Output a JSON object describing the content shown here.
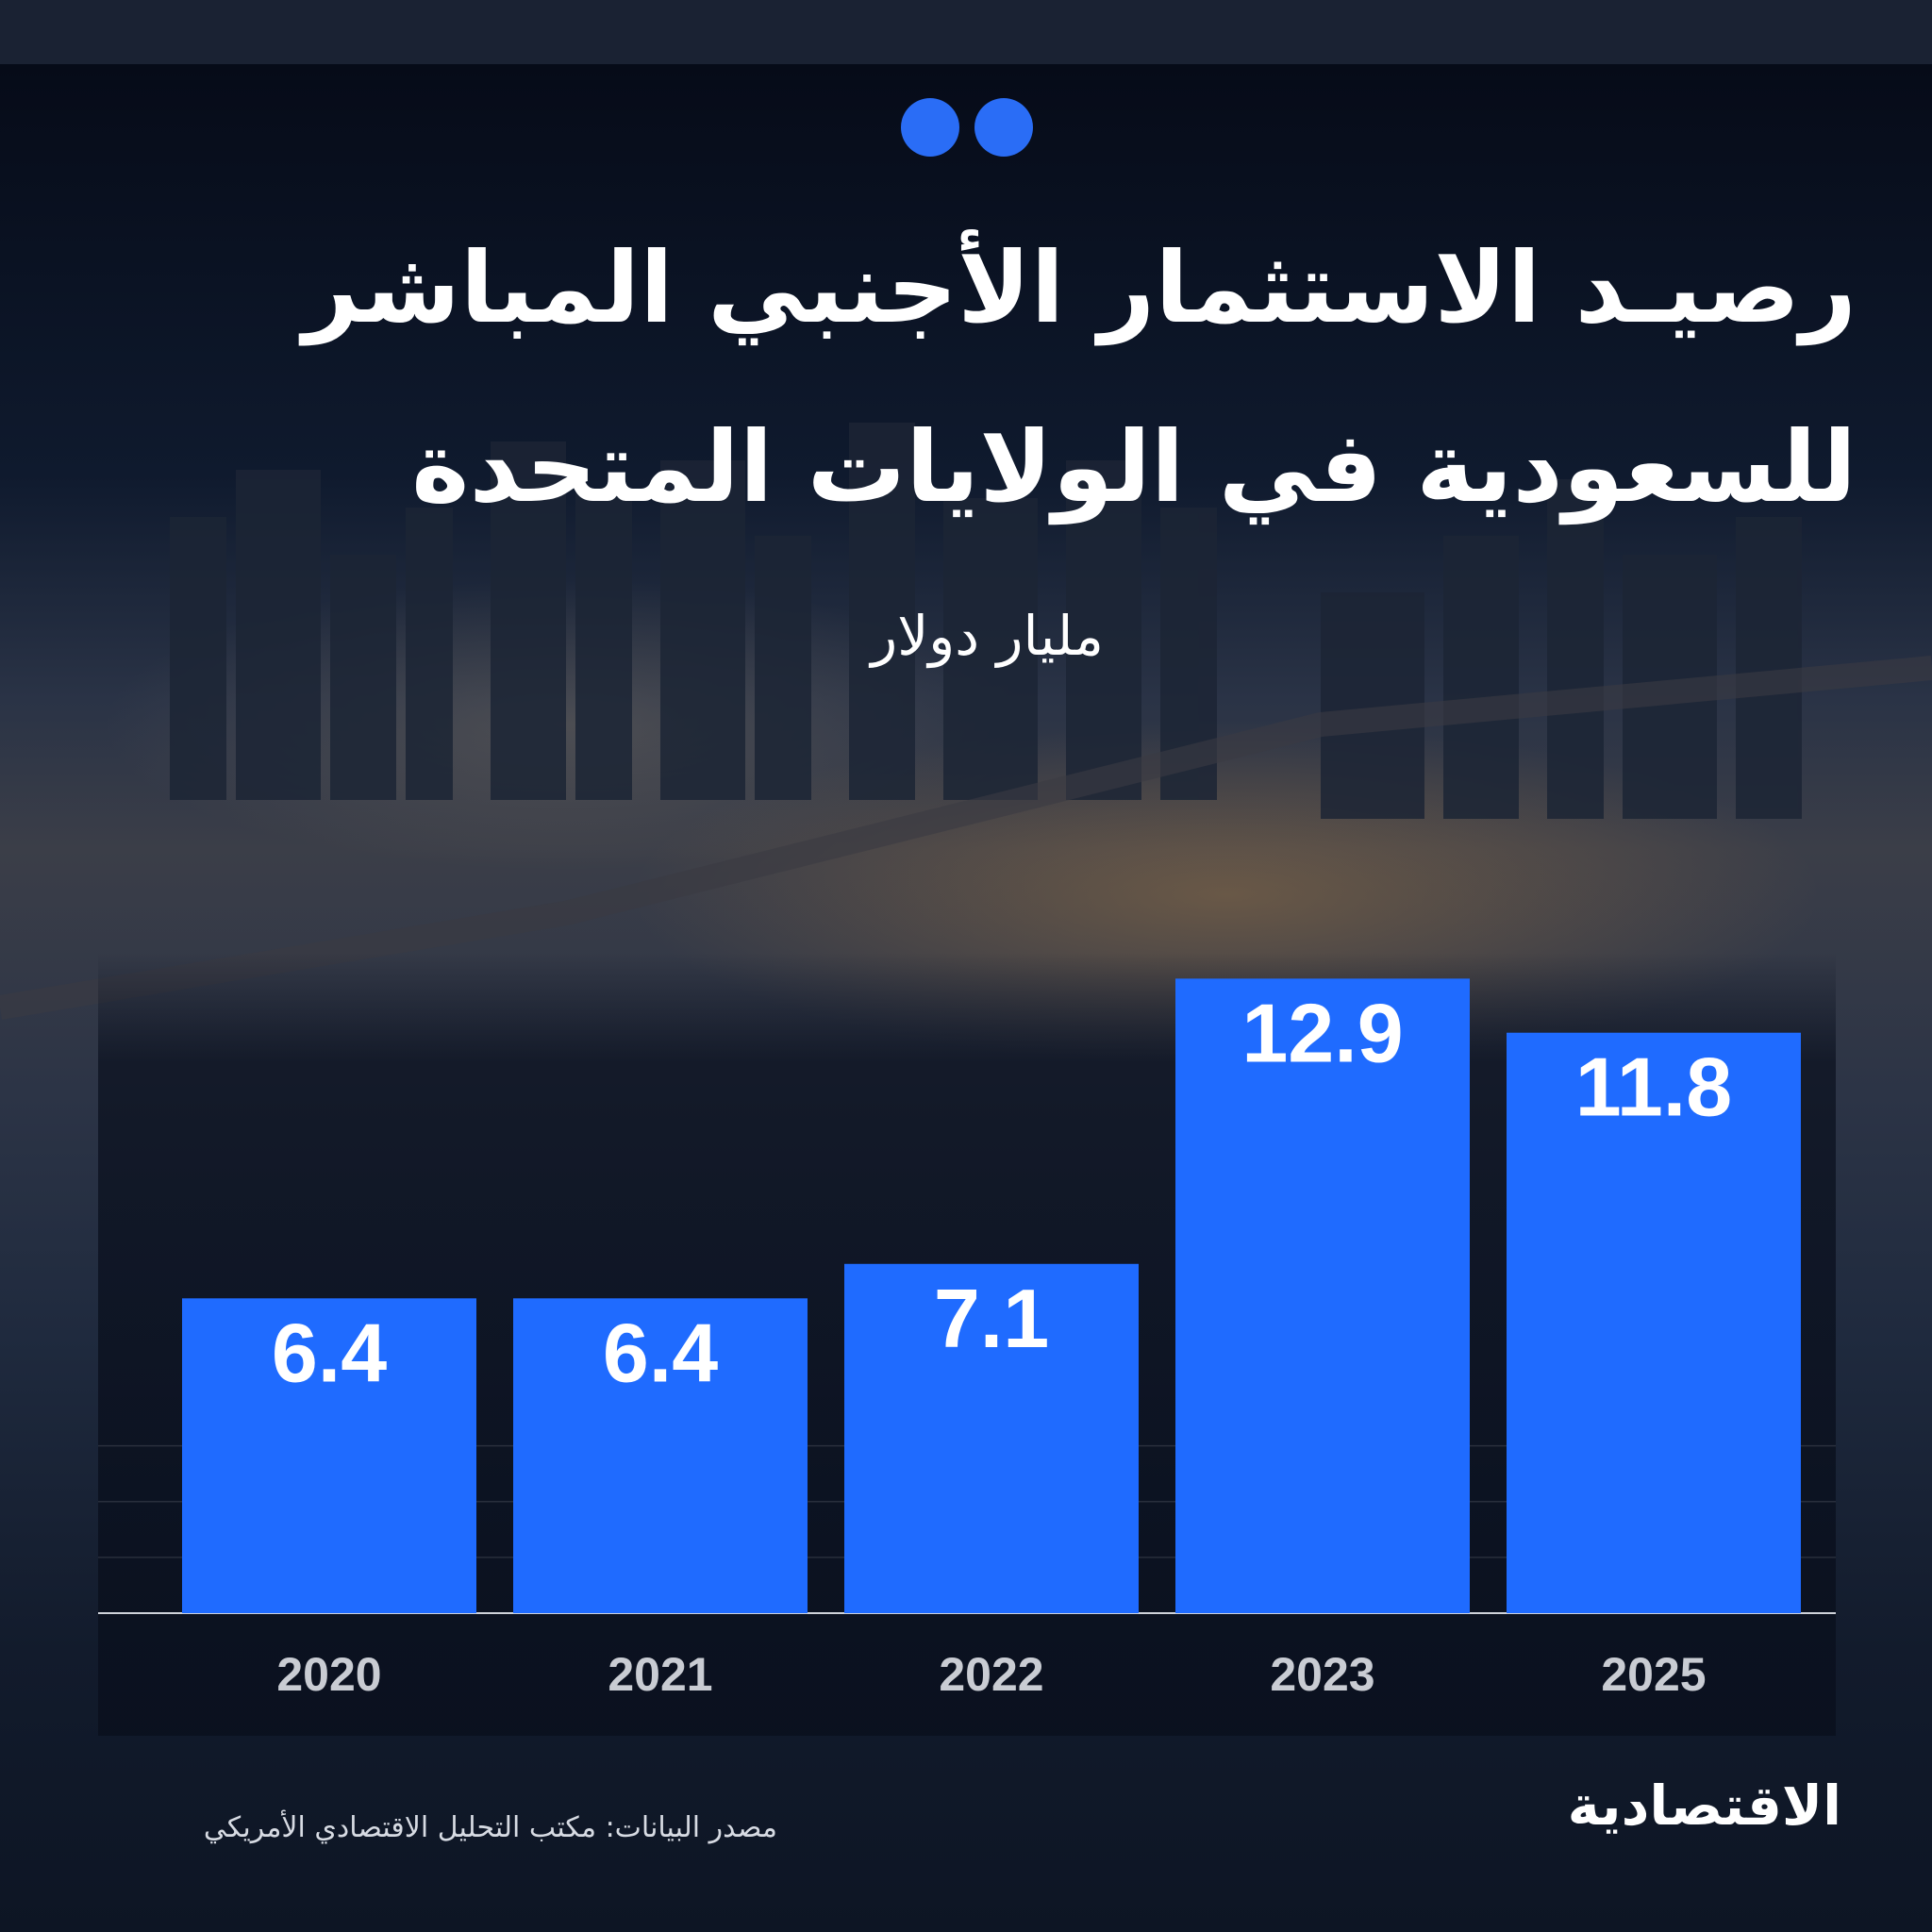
{
  "header": {
    "title_line1": "رصيـد الاستثمار الأجنبي المباشر",
    "title_line2": "للسعودية في الولايات المتحدة",
    "unit_label": "مليار دولار"
  },
  "footer": {
    "source": "مصدر البيانات: مكتب التحليل الاقتصادي الأمريكي",
    "logo_text": "الاقتصادية"
  },
  "colors": {
    "bar": "#1f6bff",
    "accent": "#2a6df6",
    "text": "#ffffff",
    "axis_text": "#c9ccd3"
  },
  "chart_data": {
    "type": "bar",
    "categories": [
      "2020",
      "2021",
      "2022",
      "2023",
      "2025"
    ],
    "values": [
      6.4,
      6.4,
      7.1,
      12.9,
      11.8
    ],
    "data_labels": [
      "6.4",
      "6.4",
      "7.1",
      "12.9",
      "11.8"
    ],
    "title": "رصيـد الاستثمار الأجنبي المباشر للسعودية في الولايات المتحدة",
    "ylabel": "مليار دولار",
    "xlabel": "",
    "ylim": [
      0,
      14
    ],
    "grid": true
  }
}
